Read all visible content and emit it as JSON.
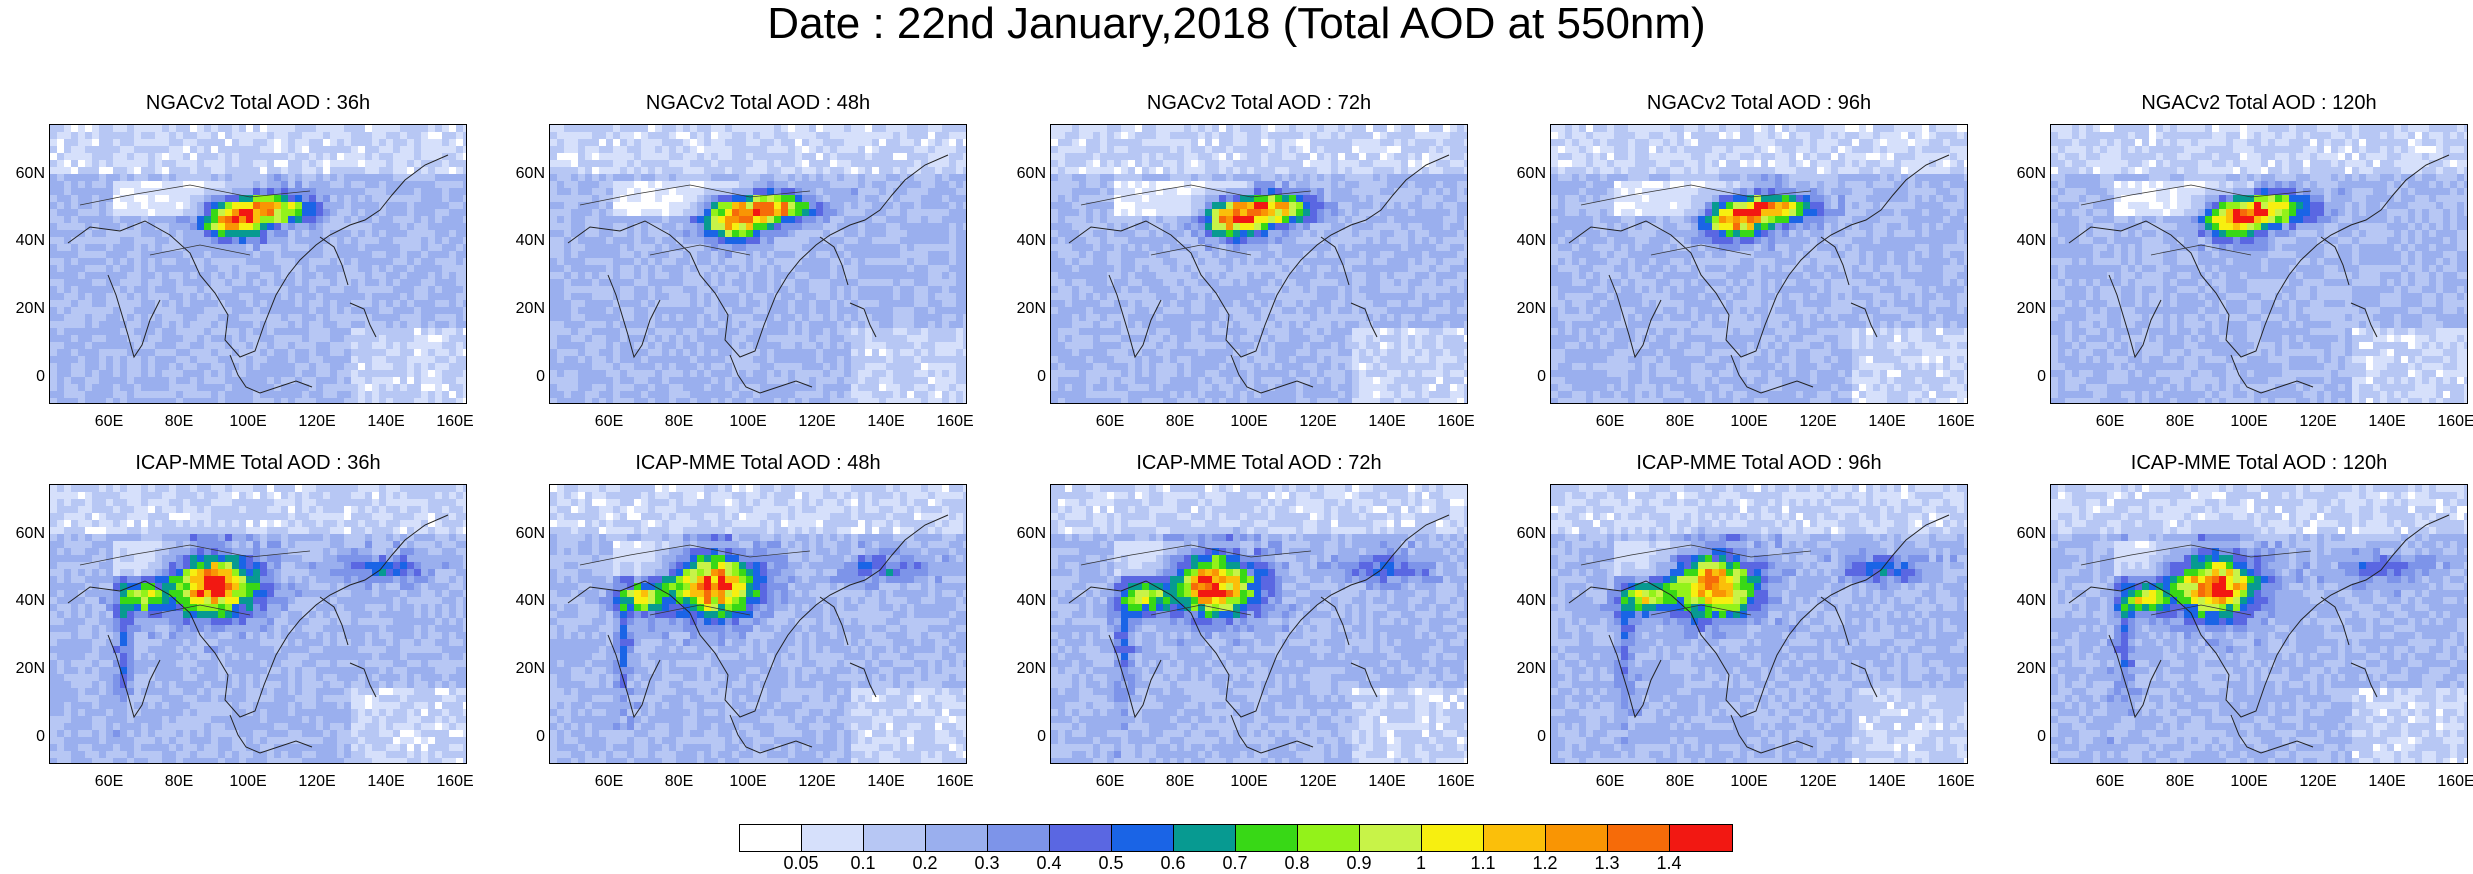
{
  "title": "Date : 22nd January,2018 (Total AOD at 550nm)",
  "panels": [
    {
      "title": "NGACv2 Total AOD : 36h",
      "model": "NGACv2",
      "lead": "36h"
    },
    {
      "title": "NGACv2 Total AOD : 48h",
      "model": "NGACv2",
      "lead": "48h"
    },
    {
      "title": "NGACv2 Total AOD : 72h",
      "model": "NGACv2",
      "lead": "72h"
    },
    {
      "title": "NGACv2 Total AOD : 96h",
      "model": "NGACv2",
      "lead": "96h"
    },
    {
      "title": "NGACv2 Total AOD : 120h",
      "model": "NGACv2",
      "lead": "120h"
    },
    {
      "title": "ICAP-MME Total AOD : 36h",
      "model": "ICAP-MME",
      "lead": "36h"
    },
    {
      "title": "ICAP-MME Total AOD : 48h",
      "model": "ICAP-MME",
      "lead": "48h"
    },
    {
      "title": "ICAP-MME Total AOD : 72h",
      "model": "ICAP-MME",
      "lead": "72h"
    },
    {
      "title": "ICAP-MME Total AOD : 96h",
      "model": "ICAP-MME",
      "lead": "96h"
    },
    {
      "title": "ICAP-MME Total AOD : 120h",
      "model": "ICAP-MME",
      "lead": "120h"
    }
  ],
  "lat_ticks": [
    "60N",
    "40N",
    "20N",
    "0"
  ],
  "lon_ticks": [
    "60E",
    "80E",
    "100E",
    "120E",
    "140E",
    "160E"
  ],
  "colorbar": {
    "labels": [
      "0.05",
      "0.1",
      "0.2",
      "0.3",
      "0.4",
      "0.5",
      "0.6",
      "0.7",
      "0.8",
      "0.9",
      "1",
      "1.1",
      "1.2",
      "1.3",
      "1.4"
    ],
    "colors": [
      "#ffffff",
      "#d6e0fb",
      "#b7c7f4",
      "#9aafee",
      "#7d94e9",
      "#5a67e2",
      "#1a64e6",
      "#079a91",
      "#38d816",
      "#93f21a",
      "#c8f348",
      "#f7ef10",
      "#fbbf0a",
      "#f99504",
      "#f66b09",
      "#f21812"
    ]
  }
}
